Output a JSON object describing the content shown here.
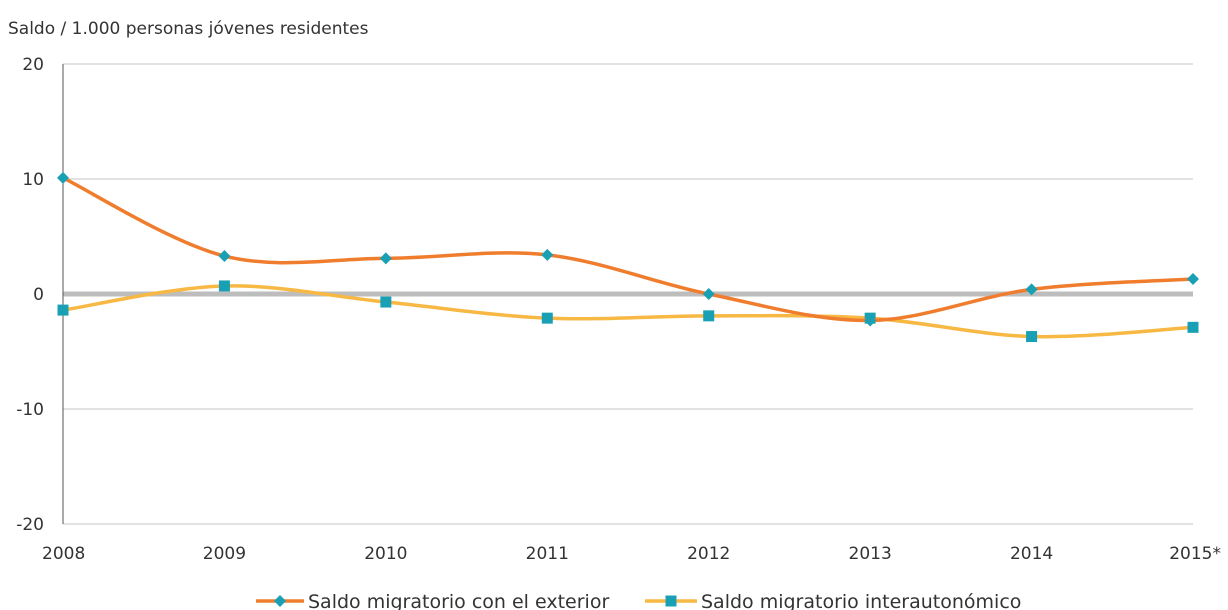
{
  "chart_data": {
    "type": "line",
    "title": "",
    "xlabel": "",
    "ylabel": "Saldo / 1.000 personas jóvenes residentes",
    "categories": [
      "2008",
      "2009",
      "2010",
      "2011",
      "2012",
      "2013",
      "2014",
      "2015*"
    ],
    "ylim": [
      -20,
      20
    ],
    "yticks": [
      20,
      10,
      0,
      -10,
      -20
    ],
    "ytick_labels": [
      "20",
      "10",
      "0",
      "-10",
      "-20"
    ],
    "grid": true,
    "zero_line_color": "#bdbdbd",
    "legend_position": "bottom",
    "series": [
      {
        "name": "Saldo migratorio con el exterior",
        "color": "#ef7d2d",
        "marker": "diamond",
        "marker_color": "#1aa0b4",
        "values": [
          10.1,
          3.3,
          3.1,
          3.4,
          0.0,
          -2.3,
          0.4,
          1.3
        ]
      },
      {
        "name": "Saldo migratorio interautonómico",
        "color": "#f7b844",
        "marker": "square",
        "marker_color": "#1aa0b4",
        "values": [
          -1.4,
          0.7,
          -0.7,
          -2.1,
          -1.9,
          -2.1,
          -3.7,
          -2.9
        ]
      }
    ]
  }
}
